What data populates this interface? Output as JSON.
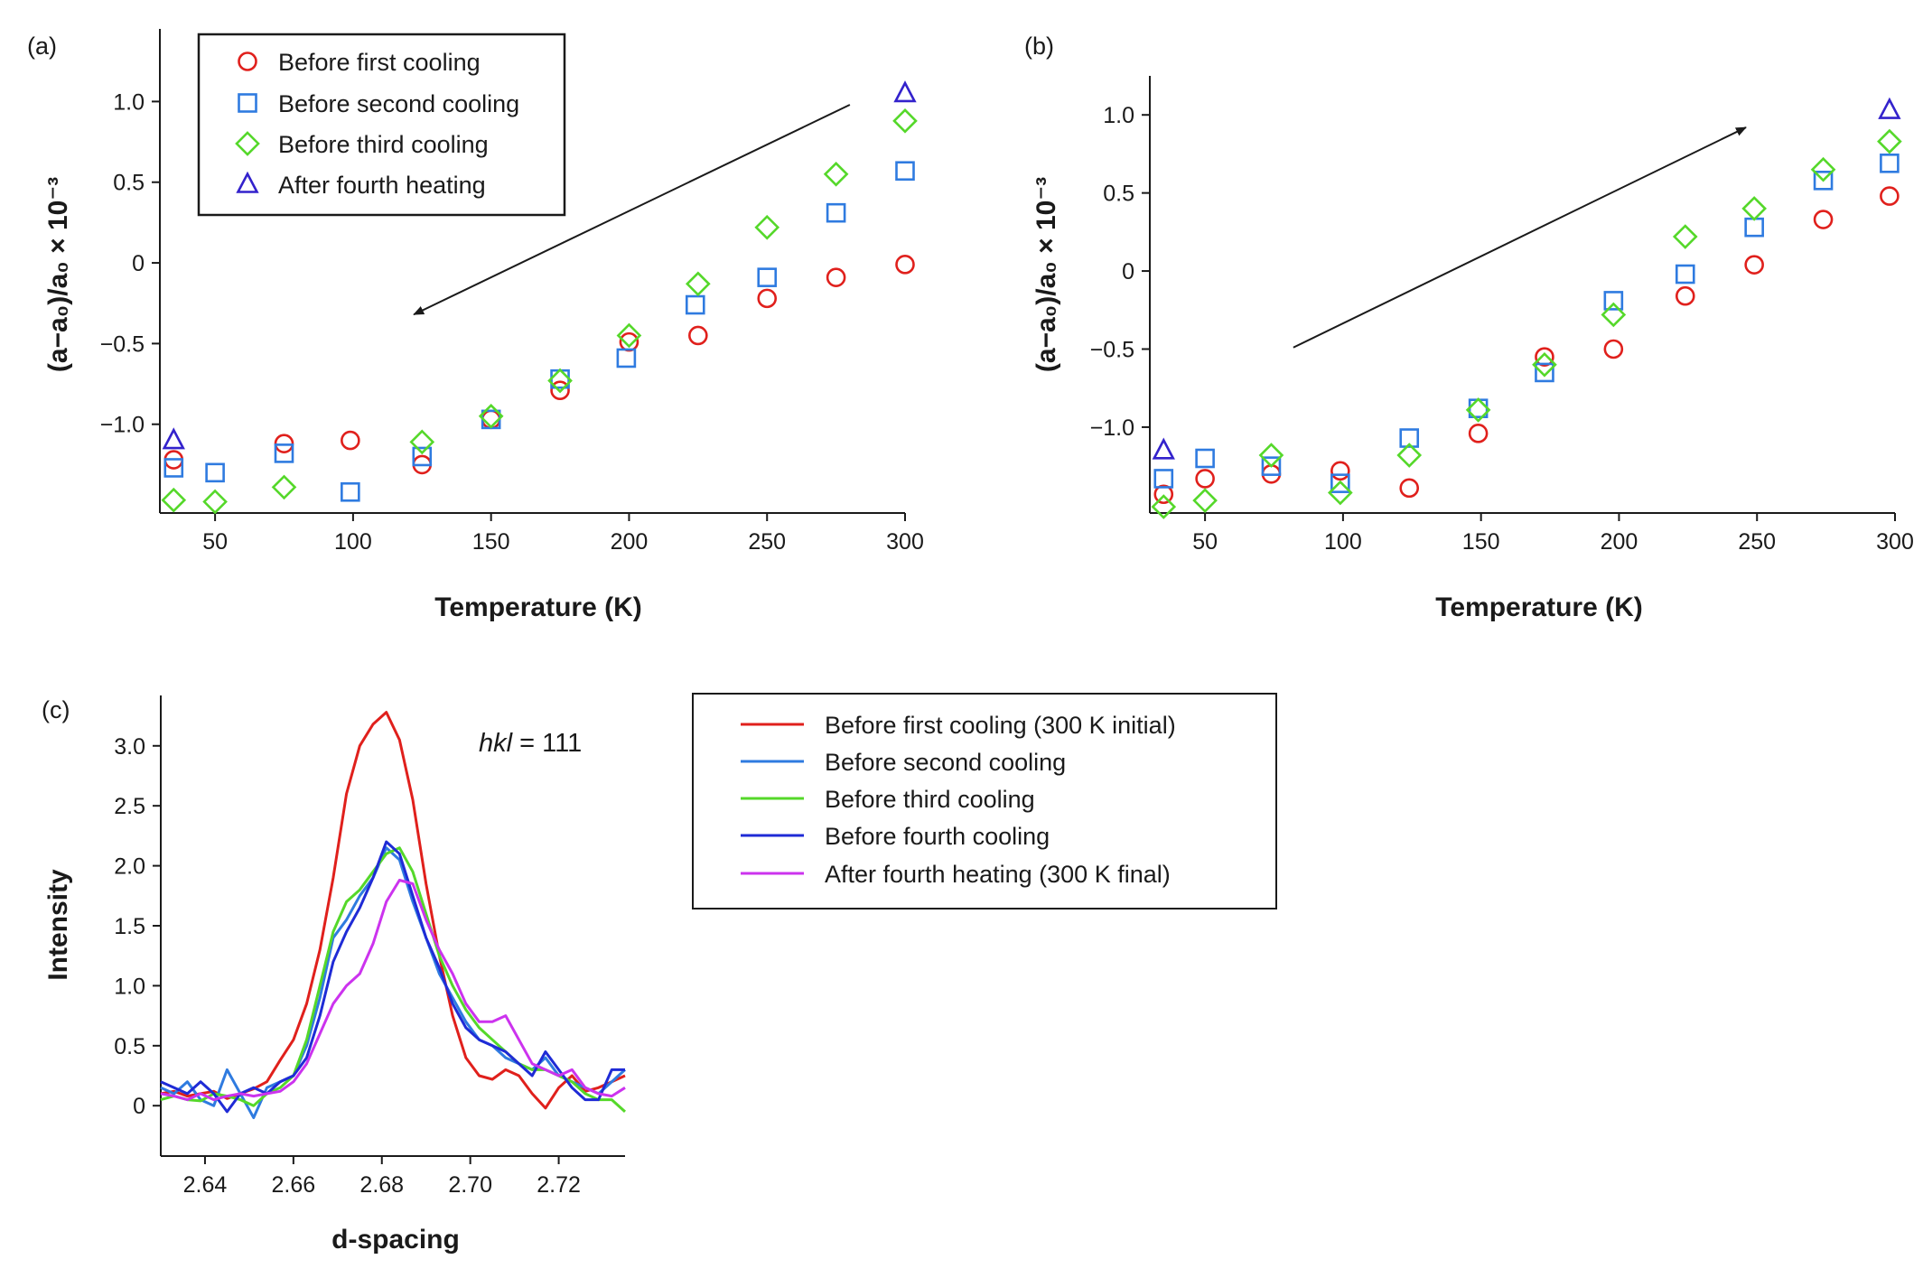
{
  "colors": {
    "first": "#e0201c",
    "second": "#2f7be0",
    "third": "#55d82a",
    "fourth": "#3322cc",
    "fourth_line": "#1f2bd6",
    "after": "#cc33ee"
  },
  "chart_data": [
    {
      "type": "scatter",
      "panel": "(a)",
      "xlabel": "Temperature (K)",
      "ylabel": "(a−a₀)/a₀ × 10⁻³",
      "xlim": [
        30,
        300
      ],
      "ylim": [
        -1.55,
        1.45
      ],
      "xticks": [
        50,
        100,
        150,
        200,
        250,
        300
      ],
      "yticks": [
        -1.0,
        -0.5,
        0,
        0.5,
        1.0
      ],
      "ytick_labels": [
        "−1.0",
        "−0.5",
        "0",
        "0.5",
        "1.0"
      ],
      "legend_position": "top-left",
      "arrow": {
        "direction": "cooling",
        "from": [
          280,
          0.98
        ],
        "to": [
          122,
          -0.32
        ]
      },
      "series": [
        {
          "name": "Before first cooling",
          "marker": "circle",
          "color_key": "first",
          "x": [
            35,
            75,
            99,
            125,
            150,
            175,
            200,
            225,
            250,
            275,
            300
          ],
          "y": [
            -1.22,
            -1.12,
            -1.1,
            -1.25,
            -0.97,
            -0.79,
            -0.49,
            -0.45,
            -0.22,
            -0.09,
            -0.01
          ]
        },
        {
          "name": "Before second cooling",
          "marker": "square",
          "color_key": "second",
          "x": [
            35,
            50,
            75,
            99,
            125,
            150,
            175,
            199,
            224,
            250,
            275,
            300
          ],
          "y": [
            -1.27,
            -1.3,
            -1.18,
            -1.42,
            -1.2,
            -0.97,
            -0.72,
            -0.59,
            -0.26,
            -0.09,
            0.31,
            0.57
          ]
        },
        {
          "name": "Before third cooling",
          "marker": "diamond",
          "color_key": "third",
          "x": [
            35,
            50,
            75,
            125,
            150,
            175,
            200,
            225,
            250,
            275,
            300
          ],
          "y": [
            -1.47,
            -1.48,
            -1.39,
            -1.11,
            -0.95,
            -0.73,
            -0.45,
            -0.13,
            0.22,
            0.55,
            0.88
          ]
        },
        {
          "name": "After fourth heating",
          "marker": "triangle",
          "color_key": "fourth",
          "x": [
            35,
            300
          ],
          "y": [
            -1.1,
            1.05
          ]
        }
      ]
    },
    {
      "type": "scatter",
      "panel": "(b)",
      "xlabel": "Temperature (K)",
      "ylabel": "(a−a₀)/a₀ × 10⁻³",
      "xlim": [
        30,
        300
      ],
      "ylim": [
        -1.55,
        1.25
      ],
      "xticks": [
        50,
        100,
        150,
        200,
        250,
        300
      ],
      "yticks": [
        -1.0,
        -0.5,
        0,
        0.5,
        1.0
      ],
      "ytick_labels": [
        "−1.0",
        "−0.5",
        "0",
        "0.5",
        "1.0"
      ],
      "arrow": {
        "direction": "heating",
        "from": [
          82,
          -0.49
        ],
        "to": [
          246,
          0.92
        ]
      },
      "series": [
        {
          "name": "Before first cooling",
          "marker": "circle",
          "color_key": "first",
          "x": [
            35,
            50,
            74,
            99,
            124,
            149,
            173,
            198,
            224,
            249,
            274,
            298
          ],
          "y": [
            -1.43,
            -1.33,
            -1.3,
            -1.28,
            -1.39,
            -1.04,
            -0.55,
            -0.5,
            -0.16,
            0.04,
            0.33,
            0.48
          ]
        },
        {
          "name": "Before second cooling",
          "marker": "square",
          "color_key": "second",
          "x": [
            35,
            50,
            74,
            99,
            124,
            149,
            173,
            198,
            224,
            249,
            274,
            298
          ],
          "y": [
            -1.33,
            -1.2,
            -1.25,
            -1.36,
            -1.07,
            -0.88,
            -0.65,
            -0.19,
            -0.02,
            0.28,
            0.58,
            0.69
          ]
        },
        {
          "name": "Before third cooling",
          "marker": "diamond",
          "color_key": "third",
          "x": [
            35,
            50,
            74,
            99,
            124,
            149,
            173,
            198,
            224,
            249,
            274,
            298
          ],
          "y": [
            -1.51,
            -1.47,
            -1.18,
            -1.42,
            -1.18,
            -0.89,
            -0.6,
            -0.28,
            0.22,
            0.4,
            0.65,
            0.83
          ]
        },
        {
          "name": "After fourth heating",
          "marker": "triangle",
          "color_key": "fourth",
          "x": [
            35,
            298
          ],
          "y": [
            -1.15,
            1.03
          ]
        }
      ]
    },
    {
      "type": "line",
      "panel": "(c)",
      "annotation_italic": "hkl",
      "annotation_rest": " = 111",
      "xlabel": "d-spacing",
      "ylabel": "Intensity",
      "xlim": [
        2.63,
        2.735
      ],
      "ylim": [
        -0.42,
        3.42
      ],
      "xticks": [
        2.64,
        2.66,
        2.68,
        2.7,
        2.72
      ],
      "xtick_labels": [
        "2.64",
        "2.66",
        "2.68",
        "2.70",
        "2.72"
      ],
      "yticks": [
        0,
        0.5,
        1.0,
        1.5,
        2.0,
        2.5,
        3.0
      ],
      "ytick_labels": [
        "0",
        "0.5",
        "1.0",
        "1.5",
        "2.0",
        "2.5",
        "3.0"
      ],
      "legend_position": "right",
      "x": [
        2.63,
        2.633,
        2.636,
        2.639,
        2.642,
        2.645,
        2.648,
        2.651,
        2.654,
        2.657,
        2.66,
        2.663,
        2.666,
        2.669,
        2.672,
        2.675,
        2.678,
        2.681,
        2.684,
        2.687,
        2.69,
        2.693,
        2.696,
        2.699,
        2.702,
        2.705,
        2.708,
        2.711,
        2.714,
        2.717,
        2.72,
        2.723,
        2.726,
        2.729,
        2.732,
        2.735
      ],
      "series": [
        {
          "name": "Before first cooling (300 K initial)",
          "color_key": "first",
          "values": [
            0.1,
            0.12,
            0.08,
            0.1,
            0.12,
            0.06,
            0.1,
            0.14,
            0.2,
            0.38,
            0.55,
            0.85,
            1.3,
            1.9,
            2.6,
            3.0,
            3.18,
            3.28,
            3.05,
            2.55,
            1.85,
            1.25,
            0.75,
            0.4,
            0.25,
            0.22,
            0.3,
            0.25,
            0.1,
            -0.02,
            0.15,
            0.25,
            0.12,
            0.15,
            0.2,
            0.25
          ]
        },
        {
          "name": "Before second cooling",
          "color_key": "second",
          "values": [
            0.15,
            0.1,
            0.2,
            0.05,
            0.0,
            0.3,
            0.1,
            -0.1,
            0.15,
            0.2,
            0.25,
            0.5,
            0.9,
            1.4,
            1.55,
            1.75,
            1.9,
            2.15,
            2.05,
            1.7,
            1.4,
            1.1,
            0.9,
            0.7,
            0.55,
            0.5,
            0.4,
            0.35,
            0.3,
            0.4,
            0.25,
            0.2,
            0.15,
            0.1,
            0.2,
            0.3
          ]
        },
        {
          "name": "Before third cooling",
          "color_key": "third",
          "values": [
            0.05,
            0.08,
            0.05,
            0.04,
            0.1,
            0.08,
            0.05,
            0.0,
            0.1,
            0.15,
            0.25,
            0.55,
            1.0,
            1.45,
            1.7,
            1.8,
            1.95,
            2.1,
            2.15,
            1.95,
            1.6,
            1.25,
            1.0,
            0.8,
            0.65,
            0.55,
            0.45,
            0.35,
            0.3,
            0.3,
            0.25,
            0.2,
            0.1,
            0.05,
            0.05,
            -0.05
          ]
        },
        {
          "name": "Before fourth cooling",
          "color_key": "fourth_line",
          "values": [
            0.2,
            0.15,
            0.1,
            0.2,
            0.1,
            -0.05,
            0.1,
            0.15,
            0.1,
            0.2,
            0.25,
            0.4,
            0.75,
            1.2,
            1.45,
            1.65,
            1.9,
            2.2,
            2.1,
            1.75,
            1.4,
            1.15,
            0.85,
            0.65,
            0.55,
            0.5,
            0.45,
            0.35,
            0.25,
            0.45,
            0.3,
            0.15,
            0.05,
            0.05,
            0.3,
            0.3
          ]
        },
        {
          "name": "After fourth heating (300 K final)",
          "color_key": "after",
          "values": [
            0.1,
            0.08,
            0.05,
            0.1,
            0.05,
            0.08,
            0.1,
            0.08,
            0.1,
            0.12,
            0.2,
            0.35,
            0.6,
            0.85,
            1.0,
            1.1,
            1.35,
            1.7,
            1.88,
            1.85,
            1.55,
            1.3,
            1.1,
            0.85,
            0.7,
            0.7,
            0.75,
            0.55,
            0.35,
            0.3,
            0.25,
            0.3,
            0.15,
            0.1,
            0.08,
            0.15
          ]
        }
      ]
    }
  ]
}
